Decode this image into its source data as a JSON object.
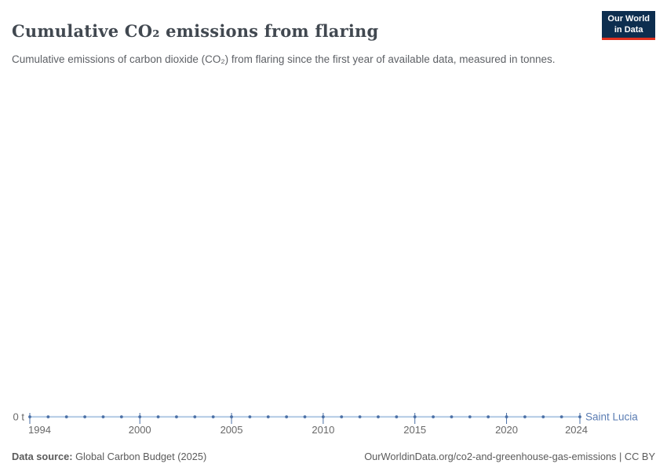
{
  "header": {
    "title": "Cumulative CO₂ emissions from flaring",
    "subtitle": "Cumulative emissions of carbon dioxide (CO₂) from flaring since the first year of available data, measured in tonnes.",
    "logo": {
      "line1": "Our World",
      "line2": "in Data"
    }
  },
  "footer": {
    "source_label": "Data source:",
    "source_value": "Global Carbon Budget (2025)",
    "right_text": "OurWorldinData.org/co2-and-greenhouse-gas-emissions | CC BY"
  },
  "colors": {
    "line": "#b9cfe7",
    "marker": "#4a6fa5",
    "entity_label": "#5b7db3",
    "axis_text": "#686868",
    "logo_bg": "#0d2e4f",
    "logo_stripe": "#e0301f"
  },
  "chart_data": {
    "type": "line",
    "title": "Cumulative CO₂ emissions from flaring",
    "xlabel": "",
    "ylabel": "",
    "x": [
      1994,
      1995,
      1996,
      1997,
      1998,
      1999,
      2000,
      2001,
      2002,
      2003,
      2004,
      2005,
      2006,
      2007,
      2008,
      2009,
      2010,
      2011,
      2012,
      2013,
      2014,
      2015,
      2016,
      2017,
      2018,
      2019,
      2020,
      2021,
      2022,
      2023,
      2024
    ],
    "series": [
      {
        "name": "Saint Lucia",
        "values": [
          0,
          0,
          0,
          0,
          0,
          0,
          0,
          0,
          0,
          0,
          0,
          0,
          0,
          0,
          0,
          0,
          0,
          0,
          0,
          0,
          0,
          0,
          0,
          0,
          0,
          0,
          0,
          0,
          0,
          0,
          0
        ],
        "unit": "t"
      }
    ],
    "x_ticks": [
      1994,
      2000,
      2005,
      2010,
      2015,
      2020,
      2024
    ],
    "y_tick_label": "0 t",
    "ylim": [
      0,
      0
    ],
    "grid": false,
    "legend": "line-end-label"
  }
}
